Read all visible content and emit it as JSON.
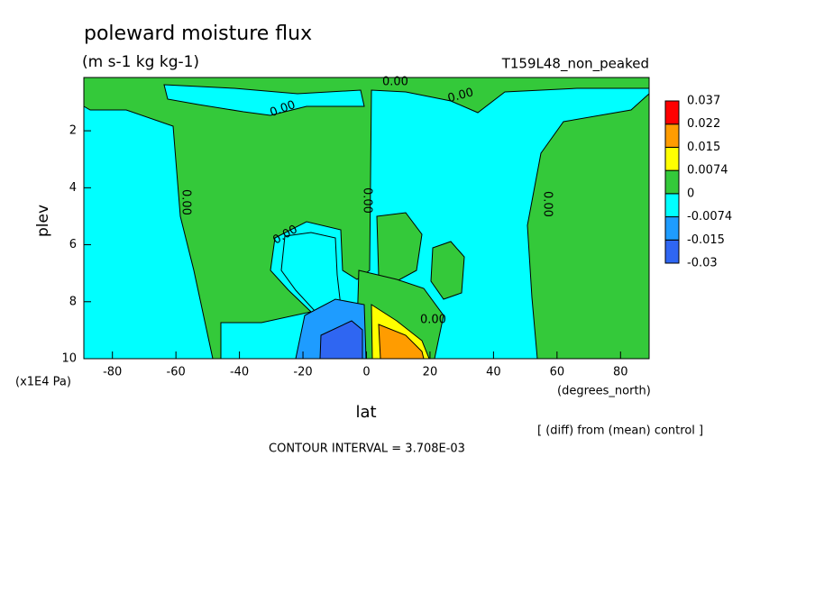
{
  "chart_data": {
    "type": "contour",
    "title": "poleward moisture flux",
    "subtitle": "(m s-1 kg kg-1)",
    "dataset": "T159L48_non_peaked",
    "x_label": "lat",
    "x_units": "(degrees_north)",
    "y_label": "plev",
    "y_units": "(x1E4 Pa)",
    "note": "[ (diff) from (mean) control ]",
    "contour_interval": "CONTOUR INTERVAL = 3.708E-03",
    "contour_label": "0.00",
    "xlim": [
      -89,
      89
    ],
    "xticks": [
      -80,
      -60,
      -40,
      -20,
      0,
      20,
      40,
      60,
      80
    ],
    "ylim": [
      10,
      0.13
    ],
    "yticks": [
      2,
      4,
      6,
      8,
      10
    ],
    "levels": [
      -0.03,
      -0.015,
      -0.0074,
      0,
      0.0074,
      0.015,
      0.022,
      0.037
    ],
    "level_colors": [
      "#2f66f2",
      "#1e9cff",
      "#00ffff",
      "#34c93a",
      "#ffff00",
      "#ff9c00",
      "#ff0000"
    ]
  }
}
